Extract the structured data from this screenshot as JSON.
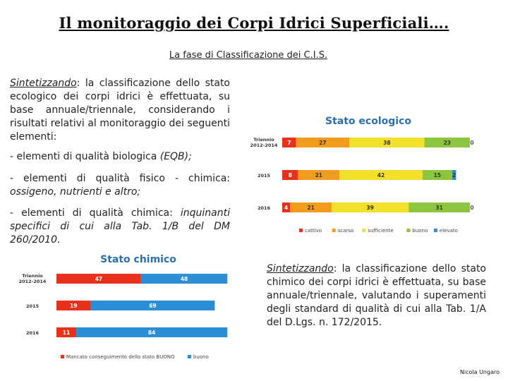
{
  "title": "Il monitoraggio dei Corpi Idrici Superficiali….",
  "subtitle": "La fase di Classificazione dei C.I.S.",
  "left_text": {
    "intro_lead": "Sintetizzando",
    "intro_rest": ": la classificazione dello stato ecologico dei corpi idrici è effettuata, su base annuale/triennale, considerando i risultati relativi al monitoraggio dei seguenti elementi:",
    "item1_main": "- elementi di qualità biologica ",
    "item1_tail": "(EQB);",
    "item2_main": "- elementi di qualità fisico - chimica: ",
    "item2_tail": "ossigeno, nutrienti e altro;",
    "item3_main": "- elementi di qualità chimica: ",
    "item3_tail": "inquinanti specifici di cui alla Tab. 1/B del DM 260/2010."
  },
  "right_text": {
    "lead": "Sintetizzando",
    "rest": ": la classificazione dello stato chimico dei corpi idrici è effettuata, su base annuale/triennale, valutando i superamenti degli standard di qualità di cui alla Tab. 1/A del D.Lgs. n. 172/2015."
  },
  "footer": "Nicola Ungaro",
  "colors": {
    "cattivo": "#e8311a",
    "scarso": "#f39b1c",
    "sufficiente": "#f2e02a",
    "buono": "#8cc63f",
    "elevato": "#2a8fd6",
    "mancato": "#e8311a",
    "buono_chimico": "#2a8fd6",
    "chart_title": "#2a6fb3"
  },
  "chart_data": [
    {
      "type": "bar",
      "stacked": true,
      "orientation": "horizontal",
      "title": "Stato ecologico",
      "categories": [
        "Triennio 2012-2014",
        "2015",
        "2016"
      ],
      "series": [
        {
          "name": "cattivo",
          "values": [
            7,
            8,
            4
          ]
        },
        {
          "name": "scarso",
          "values": [
            27,
            21,
            21
          ]
        },
        {
          "name": "sufficiente",
          "values": [
            38,
            42,
            39
          ]
        },
        {
          "name": "buono",
          "values": [
            23,
            15,
            31
          ]
        },
        {
          "name": "elevato",
          "values": [
            0,
            2,
            0
          ]
        }
      ],
      "legend_placement": "bottom"
    },
    {
      "type": "bar",
      "stacked": true,
      "orientation": "horizontal",
      "title": "Stato chimico",
      "categories": [
        "Triennio 2012-2014",
        "2015",
        "2016"
      ],
      "series": [
        {
          "name": "Mancato conseguimento dello stato BUONO",
          "values": [
            47,
            19,
            11
          ]
        },
        {
          "name": "buono",
          "values": [
            48,
            69,
            84
          ]
        }
      ],
      "legend_placement": "bottom"
    }
  ]
}
